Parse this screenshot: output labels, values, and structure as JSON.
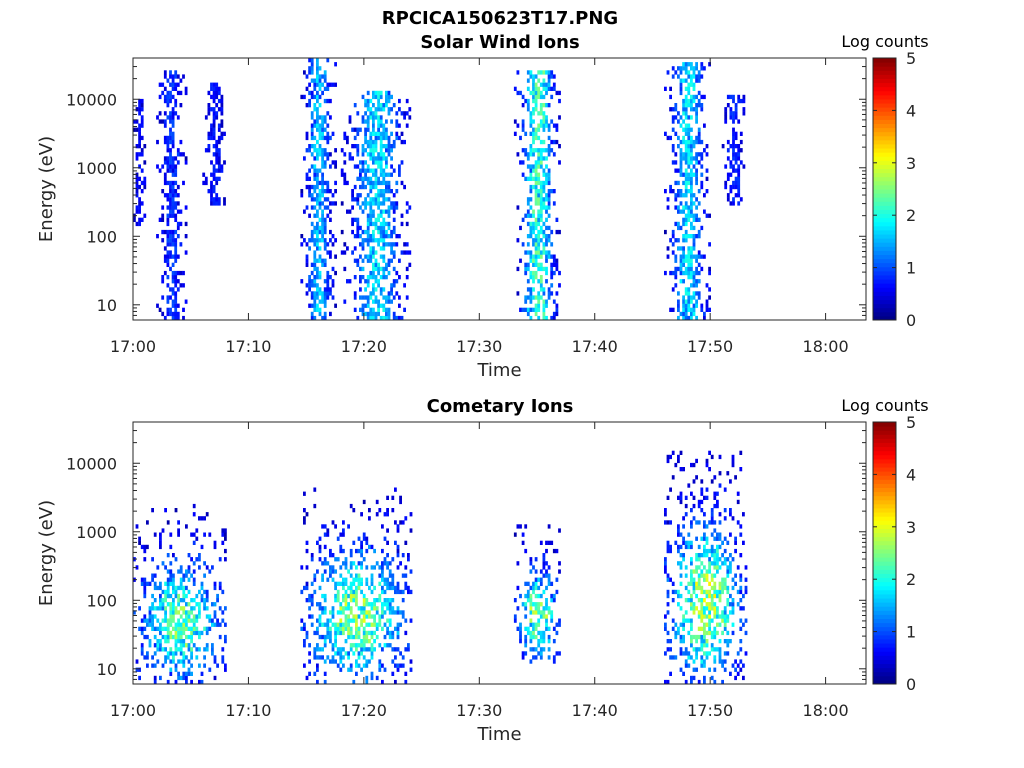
{
  "figure_title": "RPCICA150623T17.PNG",
  "chart_data": [
    {
      "type": "heatmap",
      "title": "Solar Wind Ions",
      "xlabel": "Time",
      "ylabel": "Energy (eV)",
      "x_ticks": [
        "17:00",
        "17:10",
        "17:20",
        "17:30",
        "17:40",
        "17:50",
        "18:00"
      ],
      "xlim_minutes_after_17": [
        0,
        63.5
      ],
      "y_scale": "log",
      "y_ticks": [
        10,
        100,
        1000,
        10000
      ],
      "y_tick_labels": [
        "10",
        "100",
        "1000",
        "10000"
      ],
      "ylim_eV": [
        6,
        40000
      ],
      "colorbar": {
        "label": "Log counts",
        "min": 0,
        "max": 5,
        "ticks": [
          "0",
          "1",
          "2",
          "3",
          "4",
          "5"
        ],
        "colormap": "jet"
      },
      "bursts": [
        {
          "start": "17:00",
          "end": "17:01",
          "energy_range_eV": [
            150,
            12000
          ],
          "peak_log_counts": 0.7
        },
        {
          "start": "17:02",
          "end": "17:04.5",
          "energy_range_eV": [
            6,
            28000
          ],
          "peak_log_counts": 1.0
        },
        {
          "start": "17:06",
          "end": "17:08",
          "energy_range_eV": [
            300,
            18000
          ],
          "peak_log_counts": 0.8
        },
        {
          "start": "17:14.5",
          "end": "17:17.5",
          "energy_range_eV": [
            6,
            38000
          ],
          "peak_log_counts": 1.8
        },
        {
          "start": "17:18",
          "end": "17:24",
          "energy_range_eV": [
            6,
            14000
          ],
          "peak_log_counts": 2.0
        },
        {
          "start": "17:33",
          "end": "17:37",
          "energy_range_eV": [
            6,
            28000
          ],
          "peak_log_counts": 2.5
        },
        {
          "start": "17:46",
          "end": "17:50",
          "energy_range_eV": [
            6,
            35000
          ],
          "peak_log_counts": 2.0
        },
        {
          "start": "17:51",
          "end": "17:53",
          "energy_range_eV": [
            300,
            12000
          ],
          "peak_log_counts": 0.9
        }
      ]
    },
    {
      "type": "heatmap",
      "title": "Cometary Ions",
      "xlabel": "Time",
      "ylabel": "Energy (eV)",
      "x_ticks": [
        "17:00",
        "17:10",
        "17:20",
        "17:30",
        "17:40",
        "17:50",
        "18:00"
      ],
      "xlim_minutes_after_17": [
        0,
        63.5
      ],
      "y_scale": "log",
      "y_ticks": [
        10,
        100,
        1000,
        10000
      ],
      "y_tick_labels": [
        "10",
        "100",
        "1000",
        "10000"
      ],
      "ylim_eV": [
        6,
        40000
      ],
      "colorbar": {
        "label": "Log counts",
        "min": 0,
        "max": 5,
        "ticks": [
          "0",
          "1",
          "2",
          "3",
          "4",
          "5"
        ],
        "colormap": "jet"
      },
      "bursts": [
        {
          "start": "17:00",
          "end": "17:08",
          "energy_range_eV": [
            6,
            2500
          ],
          "peak_log_counts": 2.8
        },
        {
          "start": "17:14.5",
          "end": "17:24",
          "energy_range_eV": [
            6,
            4500
          ],
          "peak_log_counts": 3.0
        },
        {
          "start": "17:33",
          "end": "17:37",
          "energy_range_eV": [
            12,
            1200
          ],
          "peak_log_counts": 3.0
        },
        {
          "start": "17:46",
          "end": "17:53",
          "energy_range_eV": [
            6,
            15000
          ],
          "peak_log_counts": 3.2
        }
      ]
    }
  ]
}
